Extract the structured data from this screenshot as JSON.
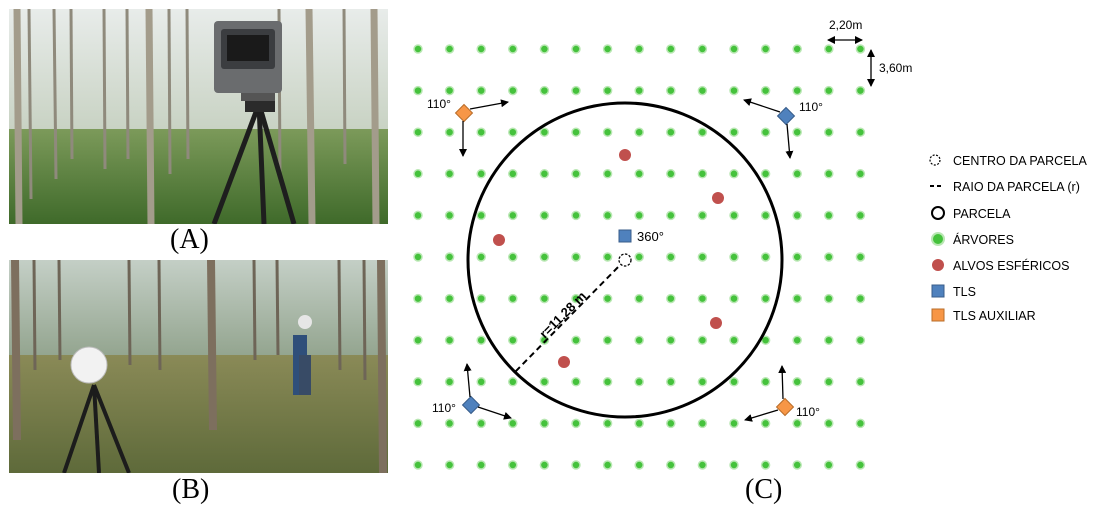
{
  "captions": {
    "a": "(A)",
    "b": "(B)",
    "c": "(C)"
  },
  "photos": {
    "a": "Terrestrial laser scanner on tripod in eucalyptus plantation",
    "b": "Spherical target on tripod with operator in eucalyptus plantation"
  },
  "diagram": {
    "spacing_x_label": "2,20m",
    "spacing_y_label": "3,60m",
    "radius_label": "r=11,28 m",
    "center_tls_label": "360°",
    "auxiliary_angle_label": "110°",
    "legend": [
      {
        "key": "center",
        "label": "CENTRO DA PARCELA"
      },
      {
        "key": "radius",
        "label": "RAIO DA PARCELA (r)"
      },
      {
        "key": "plot",
        "label": "PARCELA"
      },
      {
        "key": "trees",
        "label": "ÁRVORES"
      },
      {
        "key": "targets",
        "label": "ALVOS ESFÉRICOS"
      },
      {
        "key": "tls",
        "label": "TLS"
      },
      {
        "key": "tls_aux",
        "label": "TLS AUXILIAR"
      }
    ],
    "colors": {
      "tree_fill": "#45c23c",
      "tree_stroke": "#b9e7b3",
      "target": "#c0504d",
      "tls": "#4f81bd",
      "tls_aux": "#f79646"
    }
  }
}
